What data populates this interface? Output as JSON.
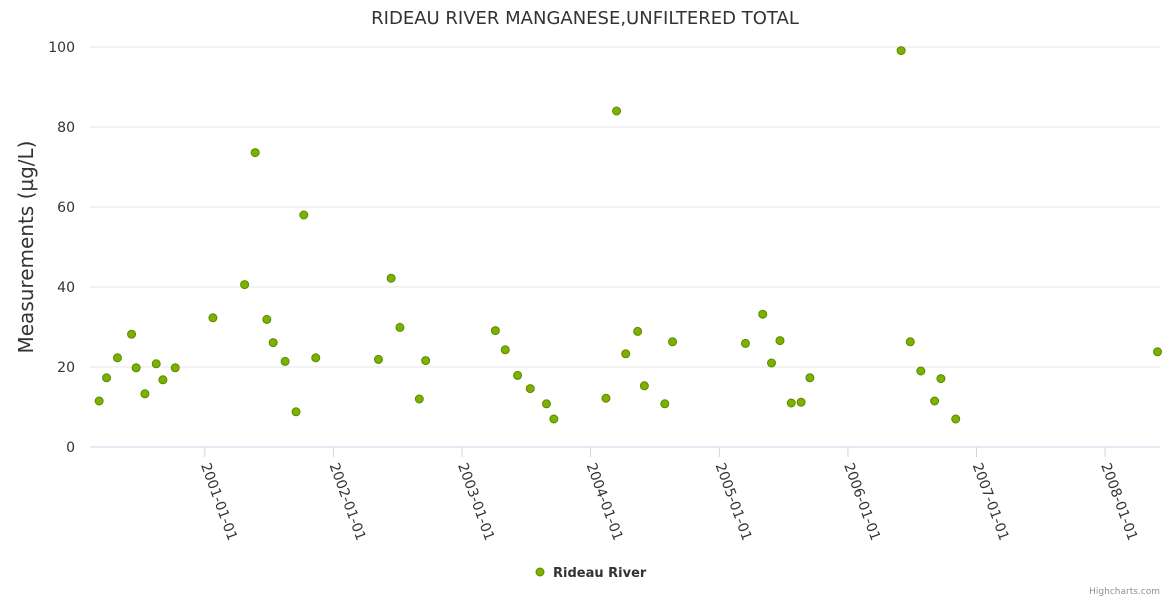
{
  "chart_data": {
    "type": "scatter",
    "title": "RIDEAU RIVER MANGANESE,UNFILTERED TOTAL",
    "ylabel": "Measurements (µg/L)",
    "xlabel": "",
    "ylim": [
      0,
      100
    ],
    "yticks": [
      0,
      20,
      40,
      60,
      80,
      100
    ],
    "xlim": [
      "2000-02-10",
      "2008-06-05"
    ],
    "xticks": [
      "2001-01-01",
      "2002-01-01",
      "2003-01-01",
      "2004-01-01",
      "2005-01-01",
      "2006-01-01",
      "2007-01-01",
      "2008-01-01"
    ],
    "grid": true,
    "legend_position": "bottom-center",
    "marker_color": "#7cb100",
    "marker_stroke": "#5a8a00",
    "series": [
      {
        "name": "Rideau River",
        "points": [
          [
            "2000-03-07",
            11.5
          ],
          [
            "2000-03-28",
            17.3
          ],
          [
            "2000-04-28",
            22.3
          ],
          [
            "2000-06-07",
            28.2
          ],
          [
            "2000-06-20",
            19.8
          ],
          [
            "2000-07-15",
            13.3
          ],
          [
            "2000-08-16",
            20.8
          ],
          [
            "2000-09-04",
            16.8
          ],
          [
            "2000-10-09",
            19.8
          ],
          [
            "2001-01-24",
            32.3
          ],
          [
            "2001-04-24",
            40.6
          ],
          [
            "2001-05-24",
            73.6
          ],
          [
            "2001-06-26",
            31.9
          ],
          [
            "2001-07-14",
            26.1
          ],
          [
            "2001-08-17",
            21.4
          ],
          [
            "2001-09-17",
            8.8
          ],
          [
            "2001-10-09",
            58.0
          ],
          [
            "2001-11-12",
            22.3
          ],
          [
            "2002-05-09",
            21.9
          ],
          [
            "2002-06-14",
            42.2
          ],
          [
            "2002-07-09",
            29.9
          ],
          [
            "2002-09-02",
            12.0
          ],
          [
            "2002-09-20",
            21.6
          ],
          [
            "2003-04-06",
            29.1
          ],
          [
            "2003-05-04",
            24.3
          ],
          [
            "2003-06-08",
            17.9
          ],
          [
            "2003-07-14",
            14.6
          ],
          [
            "2003-08-29",
            10.8
          ],
          [
            "2003-09-19",
            7.0
          ],
          [
            "2004-02-14",
            12.2
          ],
          [
            "2004-03-15",
            84.0
          ],
          [
            "2004-04-10",
            23.3
          ],
          [
            "2004-05-14",
            28.9
          ],
          [
            "2004-06-02",
            15.3
          ],
          [
            "2004-07-30",
            10.8
          ],
          [
            "2004-08-21",
            26.3
          ],
          [
            "2005-03-16",
            25.9
          ],
          [
            "2005-05-04",
            33.2
          ],
          [
            "2005-05-29",
            21.0
          ],
          [
            "2005-06-22",
            26.6
          ],
          [
            "2005-07-24",
            11.0
          ],
          [
            "2005-08-21",
            11.2
          ],
          [
            "2005-09-15",
            17.3
          ],
          [
            "2006-06-01",
            99.1
          ],
          [
            "2006-06-27",
            26.3
          ],
          [
            "2006-07-27",
            19.0
          ],
          [
            "2006-09-04",
            11.5
          ],
          [
            "2006-09-22",
            17.1
          ],
          [
            "2006-11-03",
            7.0
          ],
          [
            "2008-05-29",
            23.8
          ]
        ]
      }
    ]
  },
  "credits": "Highcharts.com"
}
